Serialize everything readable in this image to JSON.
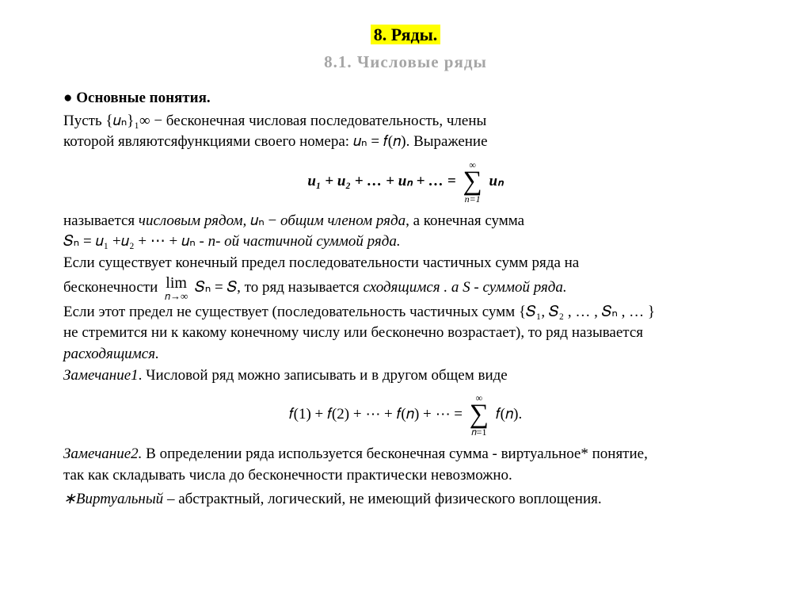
{
  "colors": {
    "highlight_bg": "#ffff00",
    "subtitle_color": "#a6a6a6",
    "text_color": "#000000",
    "background": "#ffffff"
  },
  "title": "8. Ряды.",
  "subtitle": "8.1.   Числовые   ряды",
  "section_head": "●  Основные понятия.",
  "p1_a": "Пусть ",
  "p1_braces": "{𝑢ₙ}₁∞",
  "p1_b": "  − бесконечная числовая последовательность, члены",
  "p2_a": "которой являютсяфункциями своего номера:  ",
  "p2_math": "𝑢ₙ = 𝑓(𝑛).",
  "p2_b": " Выражение",
  "formula1_left": "u₁ + u₂ + … + uₙ + … = ",
  "formula1_sum_top": "∞",
  "formula1_sum_bot": "n=1",
  "formula1_right": "uₙ",
  "p3_a": "называется ",
  "p3_i1": "числовым рядом,   ",
  "p3_m1": "𝑢ₙ −",
  "p3_i2": " общим членом ряда",
  "p3_b": ",  а конечная сумма",
  "p4_a": " 𝑆ₙ = 𝑢₁ +𝑢₂ + ⋯ + 𝑢ₙ    -       ",
  "p4_i": "n- ой частичной суммой ряда.",
  "p5": "Если существует конечный предел последовательности частичных сумм ряда на",
  "p6_a": "бесконечности ",
  "p6_lim": "lim",
  "p6_limsub": "𝑛→∞",
  "p6_m": "𝑆ₙ = 𝑆,",
  "p6_b": "          то  ряд называется ",
  "p6_i1": "сходящимся . а S  - суммой ряда.",
  "p7_a": "Если этот предел не существует (последовательность частичных сумм  ",
  "p7_m": "{𝑆₁, 𝑆₂ , … , 𝑆ₙ , … }",
  "p8": "не стремится ни к какому конечному числу или бесконечно возрастает), то ряд называется",
  "p9": "расходящимся.",
  "p10_i": "Замечание1",
  "p10": ". Числовой ряд можно записывать  и  в  другом общем виде",
  "formula2_left": "𝑓(1) + 𝑓(2) + ⋯ + 𝑓(𝑛) + ⋯ =   ",
  "formula2_sum_top": "∞",
  "formula2_sum_bot": "𝑛=1",
  "formula2_right": "𝑓(𝑛).",
  "p11_i": "Замечание2.",
  "p11": "  В определении ряда используется бесконечная сумма - виртуальное* понятие,",
  "p12": "так как складывать числа до бесконечности практически невозможно.",
  "p13_i": "∗Виртуальный",
  "p13": " – абстрактный, логический, не имеющий  физического воплощения."
}
